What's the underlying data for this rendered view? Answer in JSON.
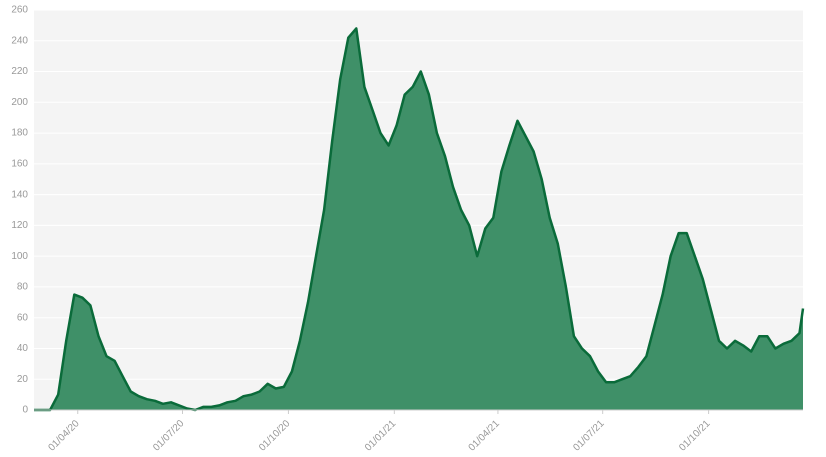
{
  "chart_data": {
    "type": "area",
    "x": [
      "2020-02-23",
      "2020-03-01",
      "2020-03-08",
      "2020-03-15",
      "2020-03-22",
      "2020-03-29",
      "2020-04-05",
      "2020-04-12",
      "2020-04-19",
      "2020-04-26",
      "2020-05-03",
      "2020-05-10",
      "2020-05-17",
      "2020-05-24",
      "2020-05-31",
      "2020-06-07",
      "2020-06-14",
      "2020-06-21",
      "2020-06-28",
      "2020-07-05",
      "2020-07-12",
      "2020-07-19",
      "2020-07-26",
      "2020-08-02",
      "2020-08-09",
      "2020-08-16",
      "2020-08-23",
      "2020-08-30",
      "2020-09-06",
      "2020-09-13",
      "2020-09-20",
      "2020-09-27",
      "2020-10-04",
      "2020-10-11",
      "2020-10-18",
      "2020-10-25",
      "2020-11-01",
      "2020-11-08",
      "2020-11-15",
      "2020-11-22",
      "2020-11-29",
      "2020-12-06",
      "2020-12-13",
      "2020-12-20",
      "2020-12-27",
      "2021-01-03",
      "2021-01-10",
      "2021-01-17",
      "2021-01-24",
      "2021-01-31",
      "2021-02-07",
      "2021-02-14",
      "2021-02-21",
      "2021-02-28",
      "2021-03-07",
      "2021-03-14",
      "2021-03-21",
      "2021-03-28",
      "2021-04-04",
      "2021-04-11",
      "2021-04-18",
      "2021-04-25",
      "2021-05-02",
      "2021-05-09",
      "2021-05-16",
      "2021-05-23",
      "2021-05-30",
      "2021-06-06",
      "2021-06-13",
      "2021-06-20",
      "2021-06-27",
      "2021-07-04",
      "2021-07-11",
      "2021-07-18",
      "2021-07-25",
      "2021-08-01",
      "2021-08-08",
      "2021-08-15",
      "2021-08-22",
      "2021-08-29",
      "2021-09-05",
      "2021-09-12",
      "2021-09-19",
      "2021-09-26",
      "2021-10-03",
      "2021-10-10",
      "2021-10-17",
      "2021-10-24",
      "2021-10-31",
      "2021-11-07",
      "2021-11-14",
      "2021-11-21",
      "2021-11-28",
      "2021-12-05",
      "2021-12-12",
      "2021-12-19",
      "2021-12-22"
    ],
    "values": [
      0,
      0,
      0,
      10,
      45,
      75,
      73,
      68,
      48,
      35,
      32,
      22,
      12,
      9,
      7,
      6,
      4,
      5,
      3,
      1,
      0,
      2,
      2,
      3,
      5,
      6,
      9,
      10,
      12,
      17,
      14,
      15,
      25,
      45,
      70,
      100,
      130,
      175,
      215,
      242,
      248,
      210,
      195,
      180,
      172,
      185,
      205,
      210,
      220,
      205,
      180,
      165,
      145,
      130,
      120,
      100,
      118,
      125,
      155,
      172,
      188,
      178,
      168,
      150,
      125,
      108,
      80,
      48,
      40,
      35,
      25,
      18,
      18,
      20,
      22,
      28,
      35,
      55,
      75,
      100,
      115,
      115,
      100,
      85,
      65,
      45,
      40,
      45,
      42,
      38,
      48,
      48,
      40,
      43,
      45,
      50,
      66
    ],
    "color": "#3f9068",
    "line_color": "#0a6b3a",
    "xlim": [
      "2020-02-23",
      "2021-12-22"
    ],
    "xticks": [
      {
        "value": "2020-04-01",
        "label": "01/04/20"
      },
      {
        "value": "2020-07-01",
        "label": "01/07/20"
      },
      {
        "value": "2020-10-01",
        "label": "01/10/20"
      },
      {
        "value": "2021-01-01",
        "label": "01/01/21"
      },
      {
        "value": "2021-04-01",
        "label": "01/04/21"
      },
      {
        "value": "2021-07-01",
        "label": "01/07/21"
      },
      {
        "value": "2021-10-01",
        "label": "01/10/21"
      }
    ],
    "ylim": [
      0,
      260
    ],
    "yticks": [
      0,
      20,
      40,
      60,
      80,
      100,
      120,
      140,
      160,
      180,
      200,
      220,
      240,
      260
    ],
    "grid": true
  }
}
